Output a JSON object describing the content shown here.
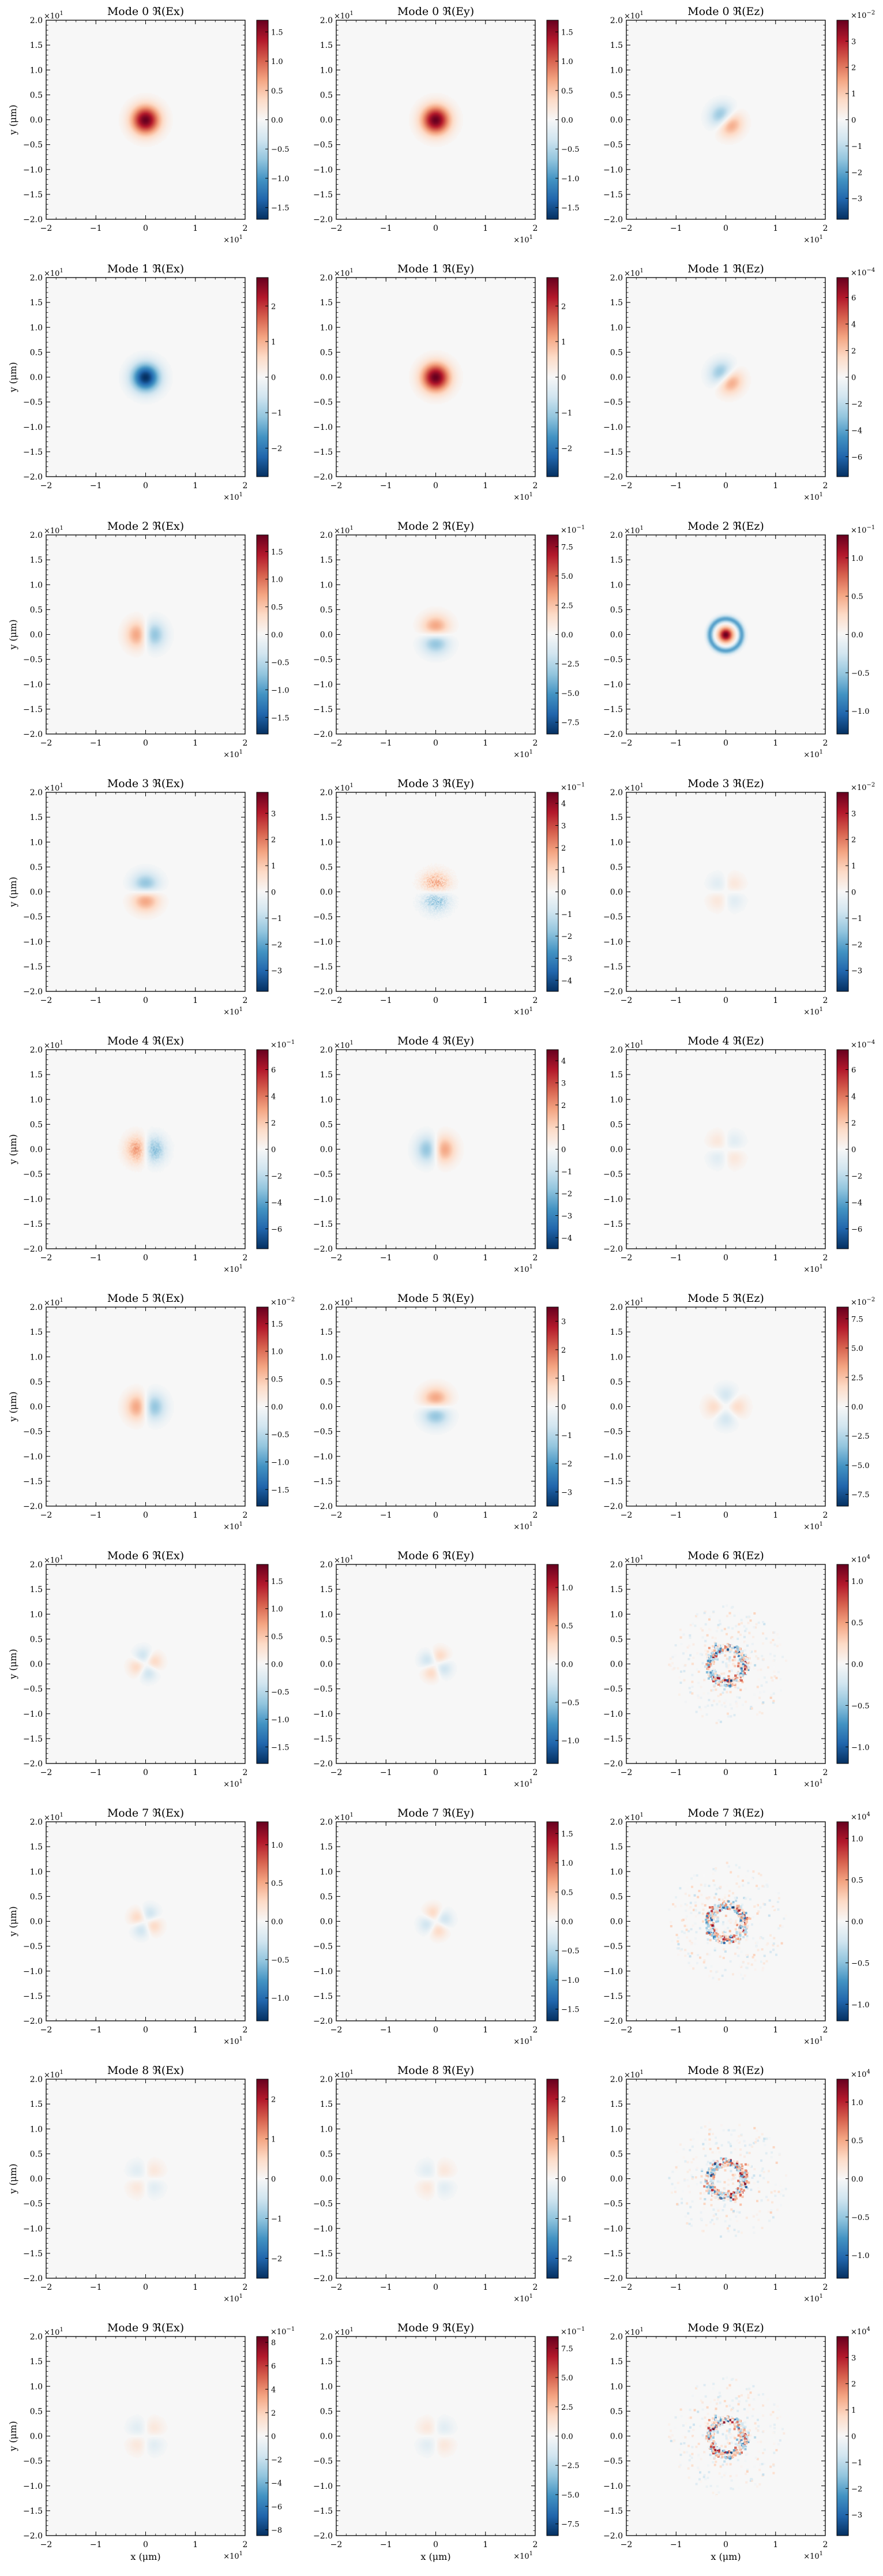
{
  "figure": {
    "x_axis_label": "x (μm)",
    "y_axis_label": "y (μm)",
    "axis_multiplier": "×10",
    "axis_multiplier_exp": "1",
    "colormap": "RdBu_r"
  },
  "chart_data": {
    "type": "heatmap",
    "xlim": [
      -2,
      2
    ],
    "ylim": [
      -2,
      2
    ],
    "xticks": [
      -2,
      -1,
      0,
      1,
      2
    ],
    "yticks": [
      -2.0,
      -1.5,
      -1.0,
      -0.5,
      0.0,
      0.5,
      1.0,
      1.5,
      2.0
    ],
    "panels": [
      {
        "mode": 0,
        "comp": "x",
        "title": "Mode 0 ℜ(Ex)",
        "pattern": "spot",
        "sign": 1,
        "cmax": 1.7,
        "ticks": [
          "1.5",
          "1.0",
          "0.5",
          "0.0",
          "−0.5",
          "−1.0",
          "−1.5"
        ],
        "exp": ""
      },
      {
        "mode": 0,
        "comp": "y",
        "title": "Mode 0 ℜ(Ey)",
        "pattern": "spot",
        "sign": 1,
        "cmax": 1.7,
        "ticks": [
          "1.5",
          "1.0",
          "0.5",
          "0.0",
          "−0.5",
          "−1.0",
          "−1.5"
        ],
        "exp": ""
      },
      {
        "mode": 0,
        "comp": "z",
        "title": "Mode 0 ℜ(Ez)",
        "pattern": "diag",
        "sign": 1,
        "cmax": 3.8,
        "ticks": [
          "3",
          "2",
          "1",
          "0",
          "−1",
          "−2",
          "−3"
        ],
        "exp": "−2"
      },
      {
        "mode": 1,
        "comp": "x",
        "title": "Mode 1 ℜ(Ex)",
        "pattern": "spot",
        "sign": -1,
        "cmax": 2.8,
        "ticks": [
          "2",
          "1",
          "0",
          "−1",
          "−2"
        ],
        "exp": ""
      },
      {
        "mode": 1,
        "comp": "y",
        "title": "Mode 1 ℜ(Ey)",
        "pattern": "spot",
        "sign": 1,
        "cmax": 2.8,
        "ticks": [
          "2",
          "1",
          "0",
          "−1",
          "−2"
        ],
        "exp": ""
      },
      {
        "mode": 1,
        "comp": "z",
        "title": "Mode 1 ℜ(Ez)",
        "pattern": "diag",
        "sign": 1,
        "cmax": 7.5,
        "ticks": [
          "6",
          "4",
          "2",
          "0",
          "−2",
          "−4",
          "−6"
        ],
        "exp": "−4"
      },
      {
        "mode": 2,
        "comp": "x",
        "title": "Mode 2 ℜ(Ex)",
        "pattern": "lr",
        "sign": 1,
        "cmax": 1.8,
        "ticks": [
          "1.5",
          "1.0",
          "0.5",
          "0.0",
          "−0.5",
          "−1.0",
          "−1.5"
        ],
        "exp": ""
      },
      {
        "mode": 2,
        "comp": "y",
        "title": "Mode 2 ℜ(Ey)",
        "pattern": "tb",
        "sign": 1,
        "cmax": 8.5,
        "ticks": [
          "7.5",
          "5.0",
          "2.5",
          "0.0",
          "−2.5",
          "−5.0",
          "−7.5"
        ],
        "exp": "−1"
      },
      {
        "mode": 2,
        "comp": "z",
        "title": "Mode 2 ℜ(Ez)",
        "pattern": "ring",
        "sign": 1,
        "cmax": 1.3,
        "ticks": [
          "1.0",
          "0.5",
          "0.0",
          "−0.5",
          "−1.0"
        ],
        "exp": "−1"
      },
      {
        "mode": 3,
        "comp": "x",
        "title": "Mode 3 ℜ(Ex)",
        "pattern": "tb",
        "sign": -1,
        "cmax": 3.8,
        "ticks": [
          "3",
          "2",
          "1",
          "0",
          "−1",
          "−2",
          "−3"
        ],
        "exp": ""
      },
      {
        "mode": 3,
        "comp": "y",
        "title": "Mode 3 ℜ(Ey)",
        "pattern": "tbn",
        "sign": 1,
        "cmax": 4.5,
        "ticks": [
          "4",
          "3",
          "2",
          "1",
          "0",
          "−1",
          "−2",
          "−3",
          "−4"
        ],
        "exp": "−1"
      },
      {
        "mode": 3,
        "comp": "z",
        "title": "Mode 3 ℜ(Ez)",
        "pattern": "quad",
        "sign": -1,
        "cmax": 3.8,
        "ticks": [
          "3",
          "2",
          "1",
          "0",
          "−1",
          "−2",
          "−3"
        ],
        "exp": "−2"
      },
      {
        "mode": 4,
        "comp": "x",
        "title": "Mode 4 ℜ(Ex)",
        "pattern": "lrn",
        "sign": 1,
        "cmax": 7.5,
        "ticks": [
          "6",
          "4",
          "2",
          "0",
          "−2",
          "−4",
          "−6"
        ],
        "exp": "−1"
      },
      {
        "mode": 4,
        "comp": "y",
        "title": "Mode 4 ℜ(Ey)",
        "pattern": "lr",
        "sign": -1,
        "cmax": 4.5,
        "ticks": [
          "4",
          "3",
          "2",
          "1",
          "0",
          "−1",
          "−2",
          "−3",
          "−4"
        ],
        "exp": ""
      },
      {
        "mode": 4,
        "comp": "z",
        "title": "Mode 4 ℜ(Ez)",
        "pattern": "quad",
        "sign": 1,
        "cmax": 7.5,
        "ticks": [
          "6",
          "4",
          "2",
          "0",
          "−2",
          "−4",
          "−6"
        ],
        "exp": "−4"
      },
      {
        "mode": 5,
        "comp": "x",
        "title": "Mode 5 ℜ(Ex)",
        "pattern": "lr",
        "sign": 1,
        "cmax": 1.8,
        "ticks": [
          "1.5",
          "1.0",
          "0.5",
          "0.0",
          "−0.5",
          "−1.0",
          "−1.5"
        ],
        "exp": "−2"
      },
      {
        "mode": 5,
        "comp": "y",
        "title": "Mode 5 ℜ(Ey)",
        "pattern": "tb",
        "sign": 1,
        "cmax": 3.5,
        "ticks": [
          "3",
          "2",
          "1",
          "0",
          "−1",
          "−2",
          "−3"
        ],
        "exp": ""
      },
      {
        "mode": 5,
        "comp": "z",
        "title": "Mode 5 ℜ(Ez)",
        "pattern": "bow",
        "sign": 1,
        "cmax": 8.5,
        "ticks": [
          "7.5",
          "5.0",
          "2.5",
          "0.0",
          "−2.5",
          "−5.0",
          "−7.5"
        ],
        "exp": "−2"
      },
      {
        "mode": 6,
        "comp": "x",
        "title": "Mode 6 ℜ(Ex)",
        "pattern": "clover",
        "sign": 1,
        "cmax": 1.8,
        "ticks": [
          "1.5",
          "1.0",
          "0.5",
          "0.0",
          "−0.5",
          "−1.0",
          "−1.5"
        ],
        "exp": ""
      },
      {
        "mode": 6,
        "comp": "y",
        "title": "Mode 6 ℜ(Ey)",
        "pattern": "clover2",
        "sign": 1,
        "cmax": 1.3,
        "ticks": [
          "1.0",
          "0.5",
          "0.0",
          "−0.5",
          "−1.0"
        ],
        "exp": ""
      },
      {
        "mode": 6,
        "comp": "z",
        "title": "Mode 6 ℜ(Ez)",
        "pattern": "noise",
        "sign": 1,
        "cmax": 1.2,
        "ticks": [
          "1.0",
          "0.5",
          "0.0",
          "−0.5",
          "−1.0"
        ],
        "exp": "4"
      },
      {
        "mode": 7,
        "comp": "x",
        "title": "Mode 7 ℜ(Ex)",
        "pattern": "clover2",
        "sign": -1,
        "cmax": 1.3,
        "ticks": [
          "1.0",
          "0.5",
          "0.0",
          "−0.5",
          "−1.0"
        ],
        "exp": ""
      },
      {
        "mode": 7,
        "comp": "y",
        "title": "Mode 7 ℜ(Ey)",
        "pattern": "clover",
        "sign": -1,
        "cmax": 1.7,
        "ticks": [
          "1.5",
          "1.0",
          "0.5",
          "0.0",
          "−0.5",
          "−1.0",
          "−1.5"
        ],
        "exp": ""
      },
      {
        "mode": 7,
        "comp": "z",
        "title": "Mode 7 ℜ(Ez)",
        "pattern": "noise",
        "sign": -1,
        "cmax": 1.2,
        "ticks": [
          "1.0",
          "0.5",
          "0.0",
          "−0.5",
          "−1.0"
        ],
        "exp": "4"
      },
      {
        "mode": 8,
        "comp": "x",
        "title": "Mode 8 ℜ(Ex)",
        "pattern": "quad",
        "sign": -1,
        "cmax": 2.5,
        "ticks": [
          "2",
          "1",
          "0",
          "−1",
          "−2"
        ],
        "exp": ""
      },
      {
        "mode": 8,
        "comp": "y",
        "title": "Mode 8 ℜ(Ey)",
        "pattern": "quad",
        "sign": -1,
        "cmax": 2.5,
        "ticks": [
          "2",
          "1",
          "0",
          "−1",
          "−2"
        ],
        "exp": ""
      },
      {
        "mode": 8,
        "comp": "z",
        "title": "Mode 8 ℜ(Ez)",
        "pattern": "noise",
        "sign": 1,
        "cmax": 1.3,
        "ticks": [
          "1.0",
          "0.5",
          "0.0",
          "−0.5",
          "−1.0"
        ],
        "exp": "4"
      },
      {
        "mode": 9,
        "comp": "x",
        "title": "Mode 9 ℜ(Ex)",
        "pattern": "quad",
        "sign": -1,
        "cmax": 8.5,
        "ticks": [
          "8",
          "6",
          "4",
          "2",
          "0",
          "−2",
          "−4",
          "−6",
          "−8"
        ],
        "exp": "−1"
      },
      {
        "mode": 9,
        "comp": "y",
        "title": "Mode 9 ℜ(Ey)",
        "pattern": "quad",
        "sign": 1,
        "cmax": 8.5,
        "ticks": [
          "7.5",
          "5.0",
          "2.5",
          "0.0",
          "−2.5",
          "−5.0",
          "−7.5"
        ],
        "exp": "−1"
      },
      {
        "mode": 9,
        "comp": "z",
        "title": "Mode 9 ℜ(Ez)",
        "pattern": "noise",
        "sign": 1,
        "cmax": 3.8,
        "ticks": [
          "3",
          "2",
          "1",
          "0",
          "−1",
          "−2",
          "−3"
        ],
        "exp": "4"
      }
    ]
  }
}
